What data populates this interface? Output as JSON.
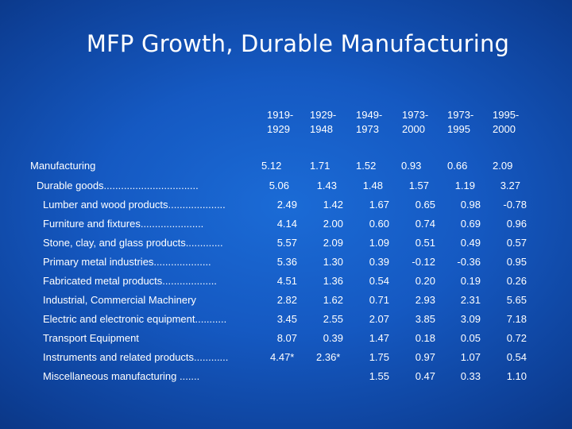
{
  "title": "MFP Growth, Durable Manufacturing",
  "headers": [
    [
      "1919-",
      "1929"
    ],
    [
      "1929-",
      "1948"
    ],
    [
      "1949-",
      "1973"
    ],
    [
      "1973-",
      "2000"
    ],
    [
      "1973-",
      "1995"
    ],
    [
      "1995-",
      "2000"
    ]
  ],
  "rows": [
    {
      "label": "Manufacturing",
      "values": [
        "5.12",
        "1.71",
        "1.52",
        "0.93",
        "0.66",
        "2.09"
      ]
    },
    {
      "label": "Durable goods.................................",
      "values": [
        "5.06",
        "1.43",
        "1.48",
        "1.57",
        "1.19",
        "3.27"
      ]
    },
    {
      "label": "Lumber and wood products....................",
      "values": [
        "2.49",
        "1.42",
        "1.67",
        "0.65",
        "0.98",
        "-0.78"
      ]
    },
    {
      "label": "Furniture and fixtures......................",
      "values": [
        "4.14",
        "2.00",
        "0.60",
        "0.74",
        "0.69",
        "0.96"
      ]
    },
    {
      "label": "Stone, clay, and glass products.............",
      "values": [
        "5.57",
        "2.09",
        "1.09",
        "0.51",
        "0.49",
        "0.57"
      ]
    },
    {
      "label": "Primary metal industries....................",
      "values": [
        "5.36",
        "1.30",
        "0.39",
        "-0.12",
        "-0.36",
        "0.95"
      ]
    },
    {
      "label": "Fabricated metal products...................",
      "values": [
        "4.51",
        "1.36",
        "0.54",
        "0.20",
        "0.19",
        "0.26"
      ]
    },
    {
      "label": "Industrial, Commercial Machinery",
      "values": [
        "2.82",
        "1.62",
        "0.71",
        "2.93",
        "2.31",
        "5.65"
      ]
    },
    {
      "label": "Electric and electronic equipment...........",
      "values": [
        "3.45",
        "2.55",
        "2.07",
        "3.85",
        "3.09",
        "7.18"
      ]
    },
    {
      "label": "Transport Equipment",
      "values": [
        "8.07",
        "0.39",
        "1.47",
        "0.18",
        "0.05",
        "0.72"
      ]
    },
    {
      "label": "Instruments and related products............",
      "values": [
        "4.47*",
        "2.36*",
        "1.75",
        "0.97",
        "1.07",
        "0.54"
      ]
    },
    {
      "label": "Miscellaneous manufacturing  .......",
      "values": [
        "",
        "",
        "1.55",
        "0.47",
        "0.33",
        "1.10"
      ]
    }
  ]
}
